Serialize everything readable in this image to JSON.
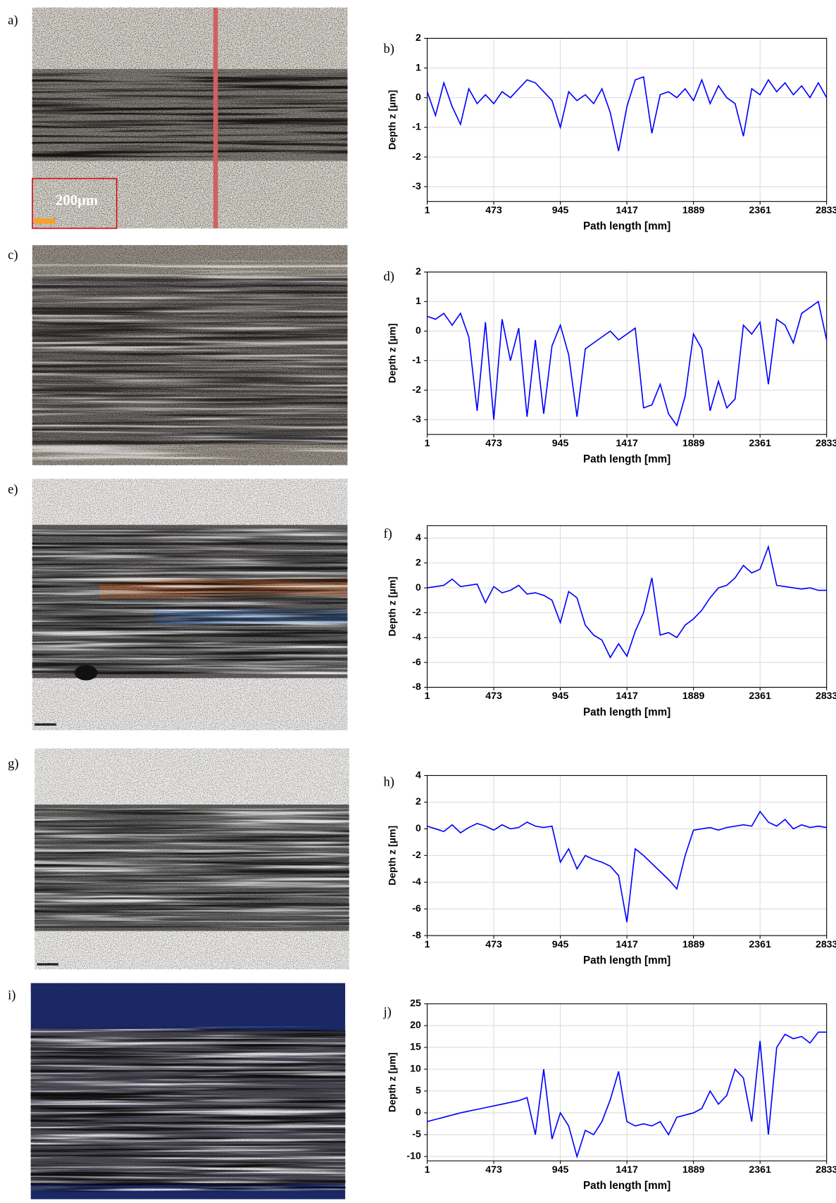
{
  "images": [
    {
      "label": "a)",
      "scale_bar": "200µm"
    },
    {
      "label": "c)"
    },
    {
      "label": "e)"
    },
    {
      "label": "g)"
    },
    {
      "label": "i)"
    }
  ],
  "chart_data": [
    {
      "type": "line",
      "panel_label": "b)",
      "x_label": "Path length [mm]",
      "y_label": "Depth z [µm]",
      "xlim": [
        1,
        2833
      ],
      "xticks": [
        1,
        473,
        945,
        1417,
        1889,
        2361,
        2833
      ],
      "ylim": [
        -3.5,
        2
      ],
      "yticks": [
        2,
        1,
        0,
        -1,
        -2,
        -3
      ],
      "grid": true,
      "x": [
        1,
        60,
        119,
        178,
        237,
        296,
        355,
        414,
        473,
        532,
        591,
        650,
        709,
        768,
        827,
        886,
        945,
        1004,
        1063,
        1122,
        1181,
        1240,
        1299,
        1358,
        1417,
        1476,
        1535,
        1594,
        1653,
        1712,
        1771,
        1830,
        1889,
        1948,
        2007,
        2066,
        2125,
        2184,
        2243,
        2302,
        2361,
        2420,
        2479,
        2538,
        2597,
        2656,
        2715,
        2774,
        2833
      ],
      "series": [
        {
          "color": "#0000ff",
          "values": [
            0.2,
            -0.6,
            0.5,
            -0.3,
            -0.9,
            0.3,
            -0.2,
            0.1,
            -0.2,
            0.2,
            0.0,
            0.3,
            0.6,
            0.5,
            0.2,
            -0.1,
            -1.0,
            0.2,
            -0.1,
            0.1,
            -0.2,
            0.3,
            -0.5,
            -1.8,
            -0.3,
            0.6,
            0.7,
            -1.2,
            0.1,
            0.2,
            0.0,
            0.3,
            -0.1,
            0.6,
            -0.2,
            0.4,
            0.0,
            -0.2,
            -1.3,
            0.3,
            0.1,
            0.6,
            0.2,
            0.5,
            0.1,
            0.4,
            0.0,
            0.5,
            0.0
          ]
        }
      ]
    },
    {
      "type": "line",
      "panel_label": "d)",
      "x_label": "Path length [mm]",
      "y_label": "Depth z [µm]",
      "xlim": [
        1,
        2833
      ],
      "xticks": [
        1,
        473,
        945,
        1417,
        1889,
        2361,
        2833
      ],
      "ylim": [
        -3.5,
        2
      ],
      "yticks": [
        2,
        1,
        0,
        -1,
        -2,
        -3
      ],
      "grid": true,
      "x": [
        1,
        60,
        119,
        178,
        237,
        296,
        355,
        414,
        473,
        532,
        591,
        650,
        709,
        768,
        827,
        886,
        945,
        1004,
        1063,
        1122,
        1181,
        1240,
        1299,
        1358,
        1417,
        1476,
        1535,
        1594,
        1653,
        1712,
        1771,
        1830,
        1889,
        1948,
        2007,
        2066,
        2125,
        2184,
        2243,
        2302,
        2361,
        2420,
        2479,
        2538,
        2597,
        2656,
        2715,
        2774,
        2833
      ],
      "series": [
        {
          "color": "#0000ff",
          "values": [
            0.5,
            0.4,
            0.6,
            0.2,
            0.6,
            -0.2,
            -2.7,
            0.3,
            -3.0,
            0.4,
            -1.0,
            0.1,
            -2.9,
            -0.3,
            -2.8,
            -0.5,
            0.2,
            -0.8,
            -2.9,
            -0.6,
            -0.4,
            -0.2,
            0.0,
            -0.3,
            -0.1,
            0.1,
            -2.6,
            -2.5,
            -1.8,
            -2.8,
            -3.2,
            -2.2,
            -0.1,
            -0.6,
            -2.7,
            -1.7,
            -2.6,
            -2.3,
            0.2,
            -0.1,
            0.3,
            -1.8,
            0.4,
            0.2,
            -0.4,
            0.6,
            0.8,
            1.0,
            -0.3
          ]
        }
      ]
    },
    {
      "type": "line",
      "panel_label": "f)",
      "x_label": "Path length [mm]",
      "y_label": "Depth z [µm]",
      "xlim": [
        1,
        2833
      ],
      "xticks": [
        1,
        473,
        945,
        1417,
        1889,
        2361,
        2833
      ],
      "ylim": [
        -8,
        5
      ],
      "yticks": [
        4,
        2,
        0,
        -2,
        -4,
        -6,
        -8
      ],
      "grid": true,
      "x": [
        1,
        60,
        119,
        178,
        237,
        296,
        355,
        414,
        473,
        532,
        591,
        650,
        709,
        768,
        827,
        886,
        945,
        1004,
        1063,
        1122,
        1181,
        1240,
        1299,
        1358,
        1417,
        1476,
        1535,
        1594,
        1653,
        1712,
        1771,
        1830,
        1889,
        1948,
        2007,
        2066,
        2125,
        2184,
        2243,
        2302,
        2361,
        2420,
        2479,
        2538,
        2597,
        2656,
        2715,
        2774,
        2833
      ],
      "series": [
        {
          "color": "#0000ff",
          "values": [
            0,
            0.1,
            0.2,
            0.7,
            0.1,
            0.2,
            0.3,
            -1.2,
            0.1,
            -0.4,
            -0.2,
            0.2,
            -0.5,
            -0.4,
            -0.6,
            -1.0,
            -2.8,
            -0.3,
            -0.8,
            -3.0,
            -3.8,
            -4.2,
            -5.6,
            -4.5,
            -5.5,
            -3.5,
            -2.0,
            0.8,
            -3.8,
            -3.6,
            -4.0,
            -3.0,
            -2.5,
            -1.8,
            -0.8,
            0.0,
            0.2,
            0.8,
            1.8,
            1.2,
            1.5,
            3.3,
            0.2,
            0.1,
            0.0,
            -0.1,
            0.0,
            -0.2,
            -0.2
          ]
        }
      ]
    },
    {
      "type": "line",
      "panel_label": "h)",
      "x_label": "Path length [mm]",
      "y_label": "Depth z [µm]",
      "xlim": [
        1,
        2833
      ],
      "xticks": [
        1,
        473,
        945,
        1417,
        1889,
        2361,
        2833
      ],
      "ylim": [
        -8,
        4
      ],
      "yticks": [
        4,
        2,
        0,
        -2,
        -4,
        -6,
        -8
      ],
      "grid": true,
      "x": [
        1,
        60,
        119,
        178,
        237,
        296,
        355,
        414,
        473,
        532,
        591,
        650,
        709,
        768,
        827,
        886,
        945,
        1004,
        1063,
        1122,
        1181,
        1240,
        1299,
        1358,
        1417,
        1476,
        1535,
        1594,
        1653,
        1712,
        1771,
        1830,
        1889,
        1948,
        2007,
        2066,
        2125,
        2184,
        2243,
        2302,
        2361,
        2420,
        2479,
        2538,
        2597,
        2656,
        2715,
        2774,
        2833
      ],
      "series": [
        {
          "color": "#0000ff",
          "values": [
            0.2,
            0.0,
            -0.2,
            0.3,
            -0.3,
            0.1,
            0.4,
            0.2,
            -0.1,
            0.3,
            0.0,
            0.1,
            0.5,
            0.2,
            0.1,
            0.2,
            -2.5,
            -1.5,
            -3.0,
            -2.0,
            -2.3,
            -2.5,
            -2.8,
            -3.5,
            -7.0,
            -1.5,
            -2.0,
            -2.6,
            -3.2,
            -3.8,
            -4.5,
            -2.0,
            -0.1,
            0.0,
            0.1,
            -0.1,
            0.1,
            0.2,
            0.3,
            0.2,
            1.3,
            0.5,
            0.2,
            0.7,
            0.0,
            0.3,
            0.1,
            0.2,
            0.1
          ]
        }
      ]
    },
    {
      "type": "line",
      "panel_label": "j)",
      "x_label": "Path length [mm]",
      "y_label": "Depth z [µm]",
      "xlim": [
        1,
        2833
      ],
      "xticks": [
        1,
        473,
        945,
        1417,
        1889,
        2361,
        2833
      ],
      "ylim": [
        -11,
        25
      ],
      "yticks": [
        25,
        20,
        15,
        10,
        5,
        0,
        -5,
        -10
      ],
      "grid": true,
      "x": [
        1,
        60,
        119,
        178,
        237,
        296,
        355,
        414,
        473,
        532,
        591,
        650,
        709,
        768,
        827,
        886,
        945,
        1004,
        1063,
        1122,
        1181,
        1240,
        1299,
        1358,
        1417,
        1476,
        1535,
        1594,
        1653,
        1712,
        1771,
        1830,
        1889,
        1948,
        2007,
        2066,
        2125,
        2184,
        2243,
        2302,
        2361,
        2420,
        2479,
        2538,
        2597,
        2656,
        2715,
        2774,
        2833
      ],
      "series": [
        {
          "color": "#0000ff",
          "values": [
            -2,
            -1.5,
            -1.0,
            -0.5,
            0,
            0.4,
            0.8,
            1.2,
            1.6,
            2.0,
            2.4,
            2.8,
            3.5,
            -5,
            10,
            -6,
            0,
            -3,
            -10,
            -4,
            -5,
            -2,
            3,
            9.5,
            -2,
            -3,
            -2.5,
            -3,
            -2,
            -5,
            -1,
            -0.5,
            0,
            1,
            5,
            2,
            4,
            10,
            8,
            -2,
            16.5,
            -5,
            15,
            18,
            17,
            17.5,
            16,
            18.5,
            18.5
          ]
        }
      ]
    }
  ]
}
